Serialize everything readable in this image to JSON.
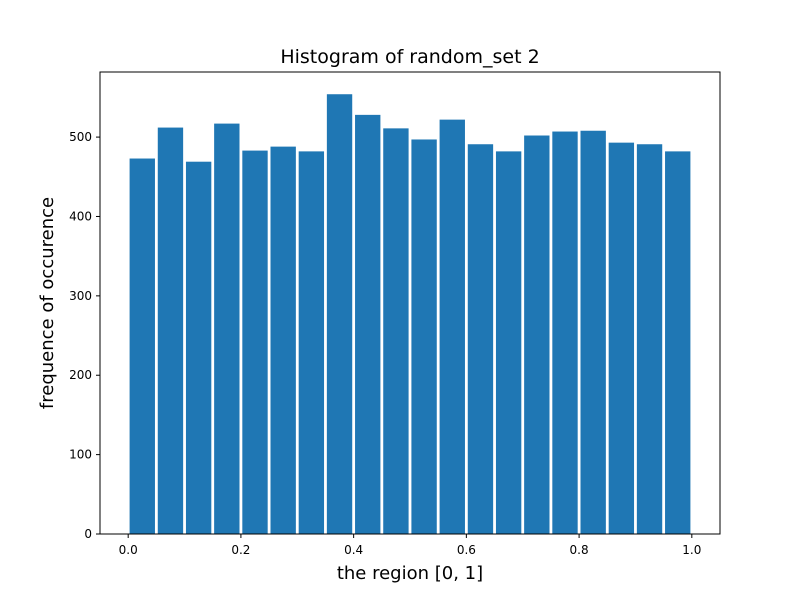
{
  "chart_data": {
    "type": "bar",
    "title": "Histogram of random_set 2",
    "xlabel": "the region [0, 1]",
    "ylabel": "frequence of occurence",
    "bin_edges": [
      0.0,
      0.05,
      0.1,
      0.15,
      0.2,
      0.25,
      0.3,
      0.35,
      0.4,
      0.45,
      0.5,
      0.55,
      0.6,
      0.65,
      0.7,
      0.75,
      0.8,
      0.85,
      0.9,
      0.95,
      1.0
    ],
    "values": [
      473,
      512,
      469,
      517,
      483,
      488,
      482,
      554,
      528,
      511,
      497,
      522,
      491,
      482,
      502,
      507,
      508,
      493,
      491,
      482
    ],
    "bar_width_fraction": 0.9,
    "xlim": [
      -0.05,
      1.05
    ],
    "ylim": [
      0,
      582
    ],
    "xticks": [
      0.0,
      0.2,
      0.4,
      0.6,
      0.8,
      1.0
    ],
    "xtick_labels": [
      "0.0",
      "0.2",
      "0.4",
      "0.6",
      "0.8",
      "1.0"
    ],
    "yticks": [
      0,
      100,
      200,
      300,
      400,
      500
    ],
    "ytick_labels": [
      "0",
      "100",
      "200",
      "300",
      "400",
      "500"
    ],
    "grid": false,
    "colors": {
      "bar": "#1f77b4",
      "axis": "#000000",
      "background": "#ffffff"
    }
  }
}
